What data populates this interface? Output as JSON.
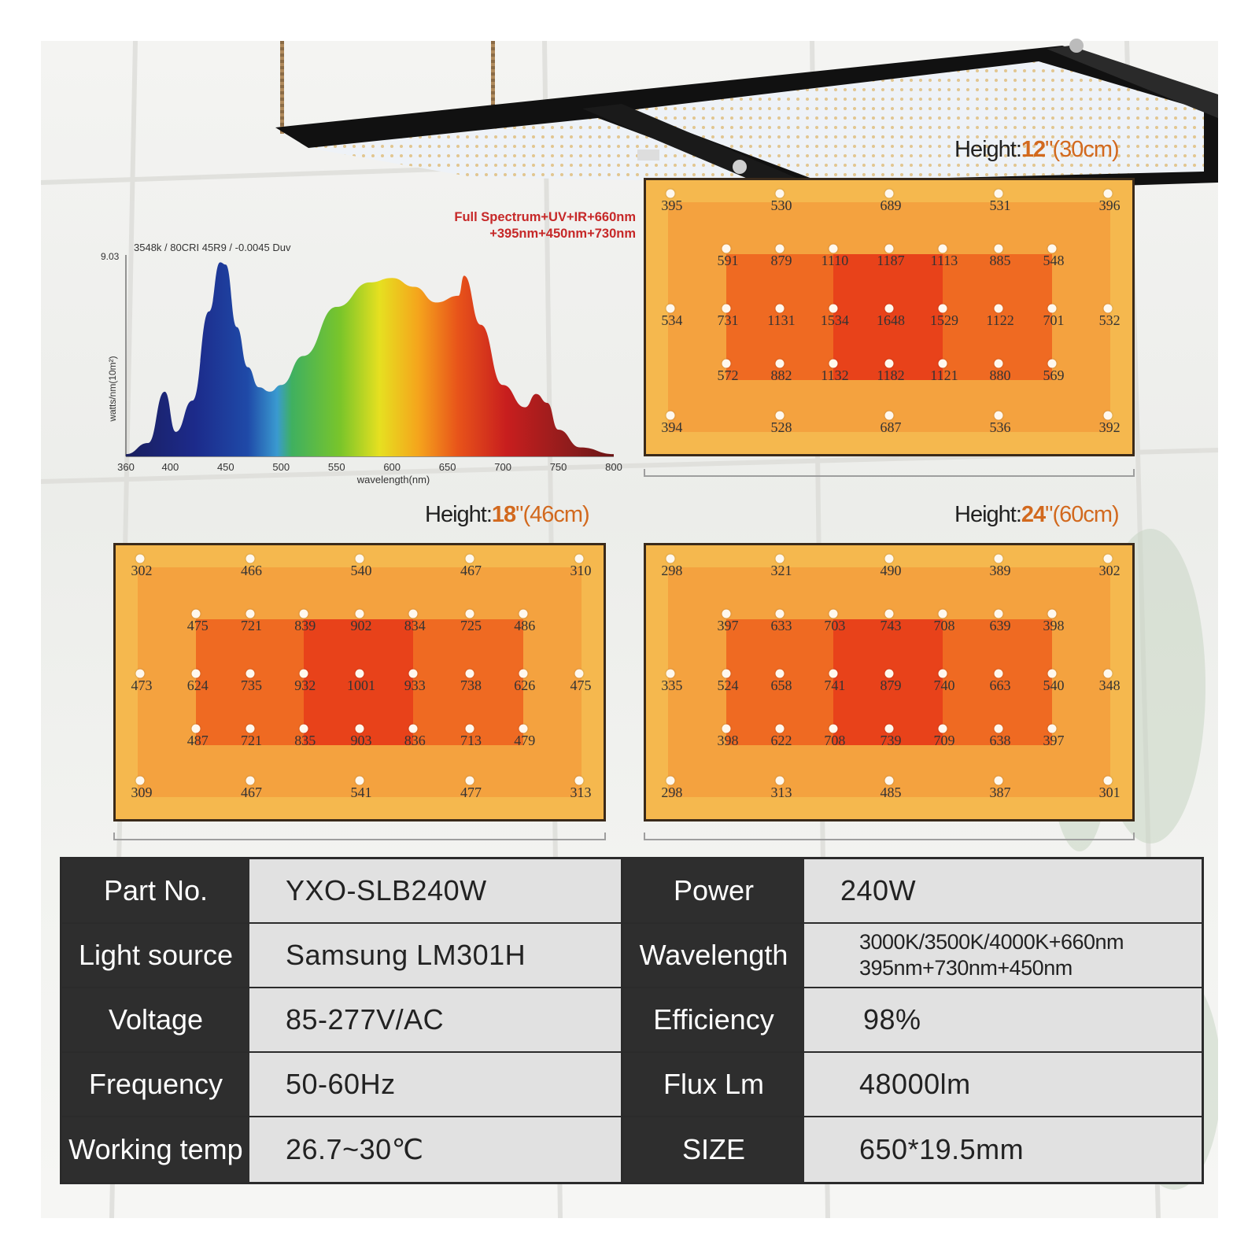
{
  "spectrum": {
    "tag_line1": "Full Spectrum+UV+IR+660nm",
    "tag_line2": "+395nm+450nm+730nm",
    "info": "3548k / 80CRI 45R9 / -0.0045 Duv",
    "y_max_label": "9.03",
    "colors": {
      "tag": "#c62828"
    }
  },
  "chart_data": [
    {
      "type": "area",
      "x": [
        360,
        380,
        395,
        405,
        420,
        435,
        445,
        450,
        460,
        470,
        480,
        490,
        500,
        520,
        550,
        580,
        600,
        620,
        640,
        660,
        665,
        680,
        700,
        720,
        730,
        740,
        750,
        770,
        800
      ],
      "y": [
        0.1,
        0.6,
        2.9,
        1.1,
        2.5,
        6.5,
        8.7,
        8.6,
        5.8,
        4.0,
        3.1,
        2.9,
        3.2,
        4.5,
        6.7,
        7.8,
        8.0,
        7.6,
        6.9,
        7.2,
        8.1,
        5.9,
        3.2,
        2.2,
        2.8,
        2.4,
        1.2,
        0.4,
        0.1
      ],
      "xlabel": "wavelength(nm)",
      "ylabel": "watts/nm(10m²)",
      "xlim": [
        360,
        800
      ],
      "ylim": [
        0,
        9.03
      ],
      "x_ticks": [
        360,
        400,
        450,
        500,
        550,
        600,
        650,
        700,
        750,
        800
      ],
      "grid": false
    },
    {
      "type": "heatmap",
      "height_prefix": "Height:",
      "height_value": "12",
      "height_unit": "\"(30cm)",
      "rows": [
        [
          395,
          530,
          689,
          531,
          396
        ],
        [
          591,
          879,
          1110,
          1187,
          1113,
          885,
          548
        ],
        [
          534,
          731,
          1131,
          1534,
          1648,
          1529,
          1122,
          701,
          532
        ],
        [
          572,
          882,
          1132,
          1182,
          1121,
          880,
          569
        ],
        [
          394,
          528,
          687,
          536,
          392
        ]
      ]
    },
    {
      "type": "heatmap",
      "height_prefix": "Height:",
      "height_value": "18",
      "height_unit": "\"(46cm)",
      "rows": [
        [
          302,
          466,
          540,
          467,
          310
        ],
        [
          475,
          721,
          839,
          902,
          834,
          725,
          486
        ],
        [
          473,
          624,
          735,
          932,
          1001,
          933,
          738,
          626,
          475
        ],
        [
          487,
          721,
          835,
          903,
          836,
          713,
          479
        ],
        [
          309,
          467,
          541,
          477,
          313
        ]
      ]
    },
    {
      "type": "heatmap",
      "height_prefix": "Height:",
      "height_value": "24",
      "height_unit": "\"(60cm)",
      "rows": [
        [
          298,
          321,
          490,
          389,
          302
        ],
        [
          397,
          633,
          703,
          743,
          708,
          639,
          398
        ],
        [
          335,
          524,
          658,
          741,
          879,
          740,
          663,
          540,
          348
        ],
        [
          398,
          622,
          708,
          739,
          709,
          638,
          397
        ],
        [
          298,
          313,
          485,
          387,
          301
        ]
      ]
    }
  ],
  "specs": {
    "rows": [
      {
        "k1": "Part No.",
        "v1": "YXO-SLB240W",
        "k2": "Power",
        "v2": [
          "240W"
        ]
      },
      {
        "k1": "Light source",
        "v1": "Samsung LM301H",
        "k2": "Wavelength",
        "v2": [
          "3000K/3500K/4000K+660nm",
          "395nm+730nm+450nm"
        ]
      },
      {
        "k1": "Voltage",
        "v1": "85-277V/AC",
        "k2": "Efficiency",
        "v2": [
          "98%"
        ]
      },
      {
        "k1": "Frequency",
        "v1": "50-60Hz",
        "k2": "Flux Lm",
        "v2": [
          "48000lm"
        ]
      },
      {
        "k1": "Working temp",
        "v1": "26.7~30℃",
        "k2": "SIZE",
        "v2": [
          "650*19.5mm"
        ]
      }
    ]
  }
}
